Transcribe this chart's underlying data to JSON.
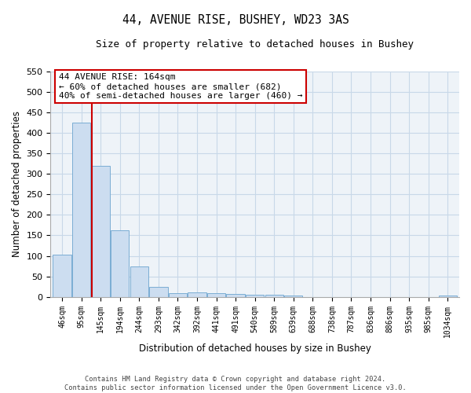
{
  "title": "44, AVENUE RISE, BUSHEY, WD23 3AS",
  "subtitle": "Size of property relative to detached houses in Bushey",
  "xlabel": "Distribution of detached houses by size in Bushey",
  "ylabel": "Number of detached properties",
  "footer_line1": "Contains HM Land Registry data © Crown copyright and database right 2024.",
  "footer_line2": "Contains public sector information licensed under the Open Government Licence v3.0.",
  "categories": [
    "46sqm",
    "95sqm",
    "145sqm",
    "194sqm",
    "244sqm",
    "293sqm",
    "342sqm",
    "392sqm",
    "441sqm",
    "491sqm",
    "540sqm",
    "589sqm",
    "639sqm",
    "688sqm",
    "738sqm",
    "787sqm",
    "836sqm",
    "886sqm",
    "935sqm",
    "985sqm",
    "1034sqm"
  ],
  "values": [
    103,
    425,
    320,
    163,
    75,
    25,
    10,
    12,
    10,
    8,
    5,
    5,
    4,
    0,
    0,
    0,
    0,
    0,
    0,
    0,
    4
  ],
  "bar_color": "#ccddf0",
  "bar_edge_color": "#7aadd4",
  "red_line_index": 2,
  "annotation_text_line1": "44 AVENUE RISE: 164sqm",
  "annotation_text_line2": "← 60% of detached houses are smaller (682)",
  "annotation_text_line3": "40% of semi-detached houses are larger (460) →",
  "annotation_box_color": "#ffffff",
  "annotation_edge_color": "#cc0000",
  "red_line_color": "#cc0000",
  "ylim": [
    0,
    550
  ],
  "yticks": [
    0,
    50,
    100,
    150,
    200,
    250,
    300,
    350,
    400,
    450,
    500,
    550
  ],
  "background_color": "#ffffff",
  "grid_color": "#c8d8e8"
}
